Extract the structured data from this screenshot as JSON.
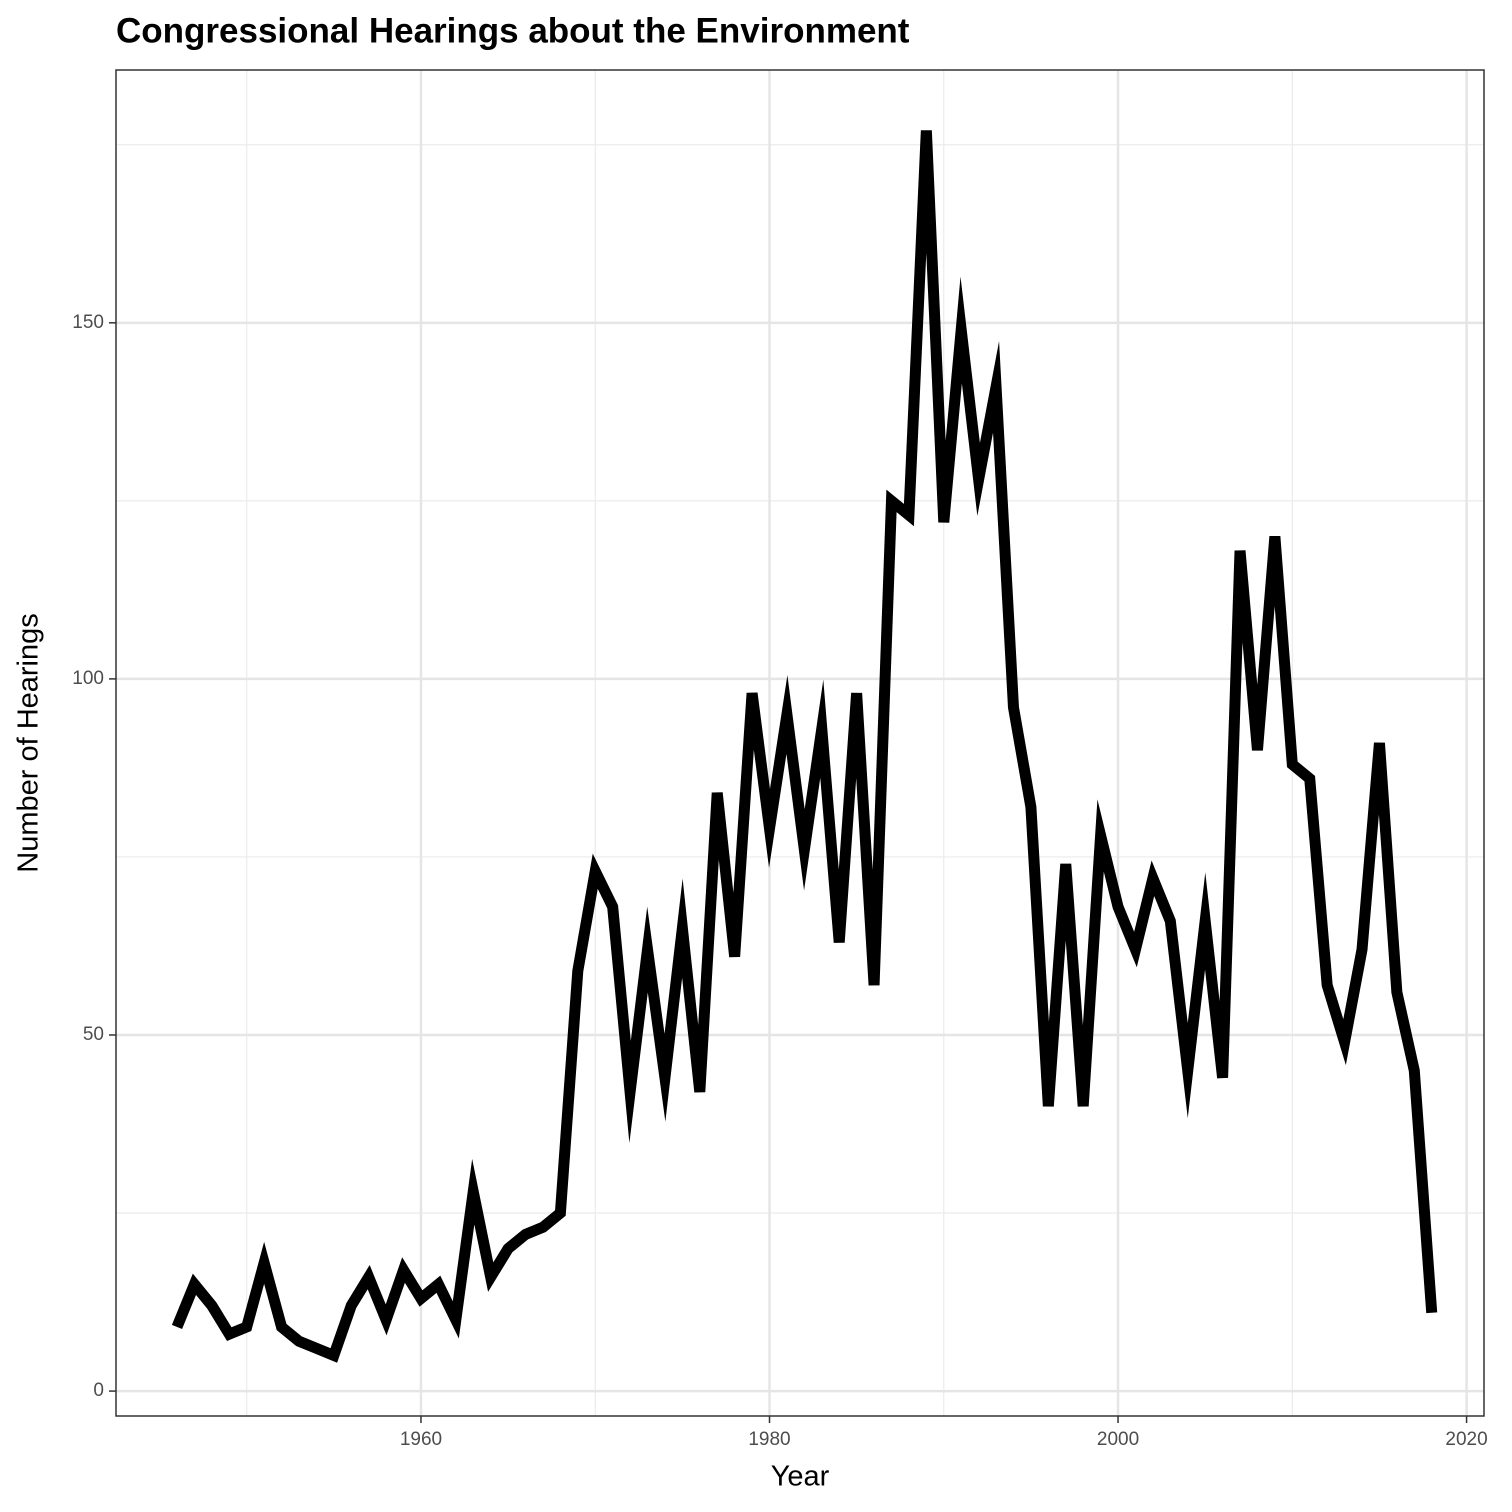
{
  "chart_data": {
    "type": "line",
    "title": "Congressional Hearings about the Environment",
    "x_label": "Year",
    "y_label": "Number of Hearings",
    "x": [
      1946,
      1947,
      1948,
      1949,
      1950,
      1951,
      1952,
      1953,
      1954,
      1955,
      1956,
      1957,
      1958,
      1959,
      1960,
      1961,
      1962,
      1963,
      1964,
      1965,
      1966,
      1967,
      1968,
      1969,
      1970,
      1971,
      1972,
      1973,
      1974,
      1975,
      1976,
      1977,
      1978,
      1979,
      1980,
      1981,
      1982,
      1983,
      1984,
      1985,
      1986,
      1987,
      1988,
      1989,
      1990,
      1991,
      1992,
      1993,
      1994,
      1995,
      1996,
      1997,
      1998,
      1999,
      2000,
      2001,
      2002,
      2003,
      2004,
      2005,
      2006,
      2007,
      2008,
      2009,
      2010,
      2011,
      2012,
      2013,
      2014,
      2015,
      2016,
      2017,
      2018
    ],
    "series": [
      {
        "color": "#000000",
        "values": [
          9,
          15,
          12,
          8,
          9,
          18,
          9,
          7,
          6,
          5,
          12,
          16,
          10,
          17,
          13,
          15,
          10,
          28,
          16,
          20,
          22,
          23,
          25,
          59,
          73,
          68,
          42,
          62,
          44,
          65,
          42,
          84,
          61,
          98,
          79,
          95,
          76,
          93,
          63,
          98,
          57,
          125,
          123,
          177,
          122,
          149,
          128,
          141,
          96,
          82,
          40,
          74,
          40,
          78,
          68,
          62,
          72,
          66,
          45,
          66,
          44,
          118,
          90,
          120,
          88,
          86,
          57,
          49,
          62,
          91,
          56,
          45,
          11
        ]
      }
    ],
    "xlim": [
      1942.5,
      2021
    ],
    "ylim": [
      -3.5,
      185.5
    ],
    "xticks": [
      1960,
      1980,
      2000,
      2020
    ],
    "yticks": [
      0,
      50,
      100,
      150
    ],
    "grid": true
  }
}
